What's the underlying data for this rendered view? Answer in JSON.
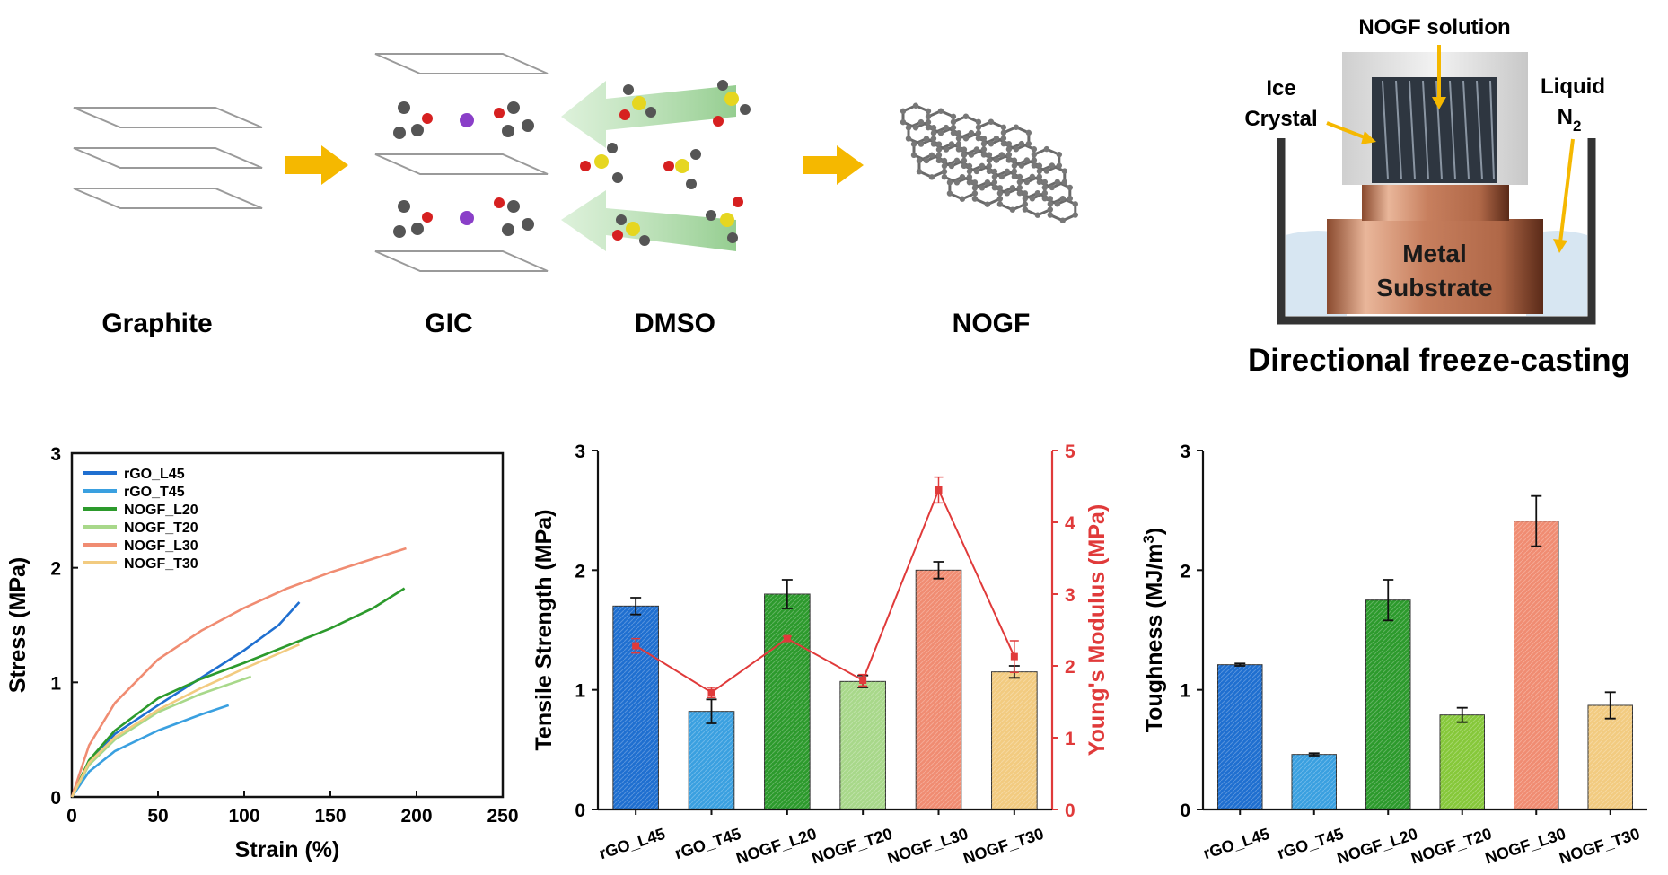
{
  "schematic": {
    "labels": {
      "graphite": "Graphite",
      "gic": "GIC",
      "dmso": "DMSO",
      "nogf": "NOGF",
      "nogf_solution": "NOGF solution",
      "ice_line1": "Ice",
      "ice_line2": "Crystal",
      "liquid_line1": "Liquid",
      "liquid_n": "N",
      "liquid_sub": "2",
      "metal_line1": "Metal",
      "metal_line2": "Substrate",
      "freeze_title": "Directional freeze-casting"
    },
    "colors": {
      "arrow": "#F5B800",
      "green_arrow": "#9ED39A",
      "copper": "#C77F5E",
      "sulfur": "#E6D620",
      "oxygen": "#D62020",
      "potassium": "#8A3FC8",
      "carbon": "#555555"
    }
  },
  "chart_data": [
    {
      "type": "line",
      "xlabel": "Strain (%)",
      "ylabel": "Stress (MPa)",
      "xlim": [
        0,
        250
      ],
      "ylim": [
        0,
        3
      ],
      "xticks": [
        "0",
        "50",
        "100",
        "150",
        "200",
        "250"
      ],
      "yticks": [
        "0",
        "1",
        "2",
        "3"
      ],
      "legend_position": "top-left",
      "series": [
        {
          "name": "rGO_L45",
          "color": "#1F6FD0",
          "points": [
            [
              0,
              0
            ],
            [
              10,
              0.3
            ],
            [
              25,
              0.55
            ],
            [
              50,
              0.8
            ],
            [
              75,
              1.04
            ],
            [
              100,
              1.28
            ],
            [
              120,
              1.5
            ],
            [
              132,
              1.7
            ]
          ]
        },
        {
          "name": "rGO_T45",
          "color": "#3AA0E0",
          "points": [
            [
              0,
              0
            ],
            [
              10,
              0.22
            ],
            [
              25,
              0.4
            ],
            [
              50,
              0.58
            ],
            [
              75,
              0.72
            ],
            [
              91,
              0.8
            ]
          ]
        },
        {
          "name": "NOGF_L20",
          "color": "#2C9A2C",
          "points": [
            [
              0,
              0
            ],
            [
              10,
              0.32
            ],
            [
              25,
              0.58
            ],
            [
              50,
              0.86
            ],
            [
              75,
              1.03
            ],
            [
              100,
              1.17
            ],
            [
              125,
              1.32
            ],
            [
              150,
              1.47
            ],
            [
              175,
              1.65
            ],
            [
              193,
              1.82
            ]
          ]
        },
        {
          "name": "NOGF_T20",
          "color": "#A8D88A",
          "points": [
            [
              0,
              0
            ],
            [
              10,
              0.28
            ],
            [
              25,
              0.5
            ],
            [
              50,
              0.74
            ],
            [
              75,
              0.9
            ],
            [
              104,
              1.05
            ]
          ]
        },
        {
          "name": "NOGF_L30",
          "color": "#F08C72",
          "points": [
            [
              0,
              0
            ],
            [
              10,
              0.45
            ],
            [
              25,
              0.82
            ],
            [
              50,
              1.2
            ],
            [
              75,
              1.45
            ],
            [
              100,
              1.65
            ],
            [
              125,
              1.82
            ],
            [
              150,
              1.96
            ],
            [
              175,
              2.08
            ],
            [
              194,
              2.17
            ]
          ]
        },
        {
          "name": "NOGF_T30",
          "color": "#F2CB80",
          "points": [
            [
              0,
              0
            ],
            [
              10,
              0.3
            ],
            [
              25,
              0.52
            ],
            [
              50,
              0.76
            ],
            [
              75,
              0.95
            ],
            [
              100,
              1.12
            ],
            [
              132,
              1.33
            ]
          ]
        }
      ]
    },
    {
      "type": "bar",
      "ylabel": "Tensile Strength (MPa)",
      "y2label": "Young's Modulus (MPa)",
      "ylim": [
        0,
        3
      ],
      "y2lim": [
        0,
        5
      ],
      "yticks": [
        "0",
        "1",
        "2",
        "3"
      ],
      "y2ticks": [
        "0",
        "1",
        "2",
        "3",
        "4",
        "5"
      ],
      "categories": [
        "rGO_L45",
        "rGO_T45",
        "NOGF_L20",
        "NOGF_T20",
        "NOGF_L30",
        "NOGF_T30"
      ],
      "colors": [
        "#1F6FD0",
        "#3AA0E0",
        "#2C9A2C",
        "#A8D88A",
        "#F08C72",
        "#F2CB80"
      ],
      "series": [
        {
          "values": [
            1.7,
            0.82,
            1.8,
            1.07,
            2.0,
            1.15
          ],
          "errors": [
            0.07,
            0.1,
            0.12,
            0.05,
            0.07,
            0.05
          ]
        },
        {
          "values": [
            2.28,
            1.63,
            2.38,
            1.8,
            4.45,
            2.13
          ],
          "errors": [
            0.1,
            0.07,
            0.03,
            0.08,
            0.18,
            0.22
          ],
          "axis": "right",
          "color": "#E03A3A"
        }
      ]
    },
    {
      "type": "bar",
      "ylabel": "Toughness (MJ/m",
      "ylabel_sup": "3",
      "ylabel_end": ")",
      "ylim": [
        0,
        3
      ],
      "yticks": [
        "0",
        "1",
        "2",
        "3"
      ],
      "categories": [
        "rGO_L45",
        "rGO_T45",
        "NOGF_L20",
        "NOGF_T20",
        "NOGF_L30",
        "NOGF_T30"
      ],
      "colors": [
        "#1F6FD0",
        "#3AA0E0",
        "#2C9A2C",
        "#86C83A",
        "#F08C72",
        "#F2CB80"
      ],
      "series": [
        {
          "values": [
            1.21,
            0.46,
            1.75,
            0.79,
            2.41,
            0.87
          ],
          "errors": [
            0.01,
            0.01,
            0.17,
            0.06,
            0.21,
            0.11
          ]
        }
      ]
    }
  ]
}
